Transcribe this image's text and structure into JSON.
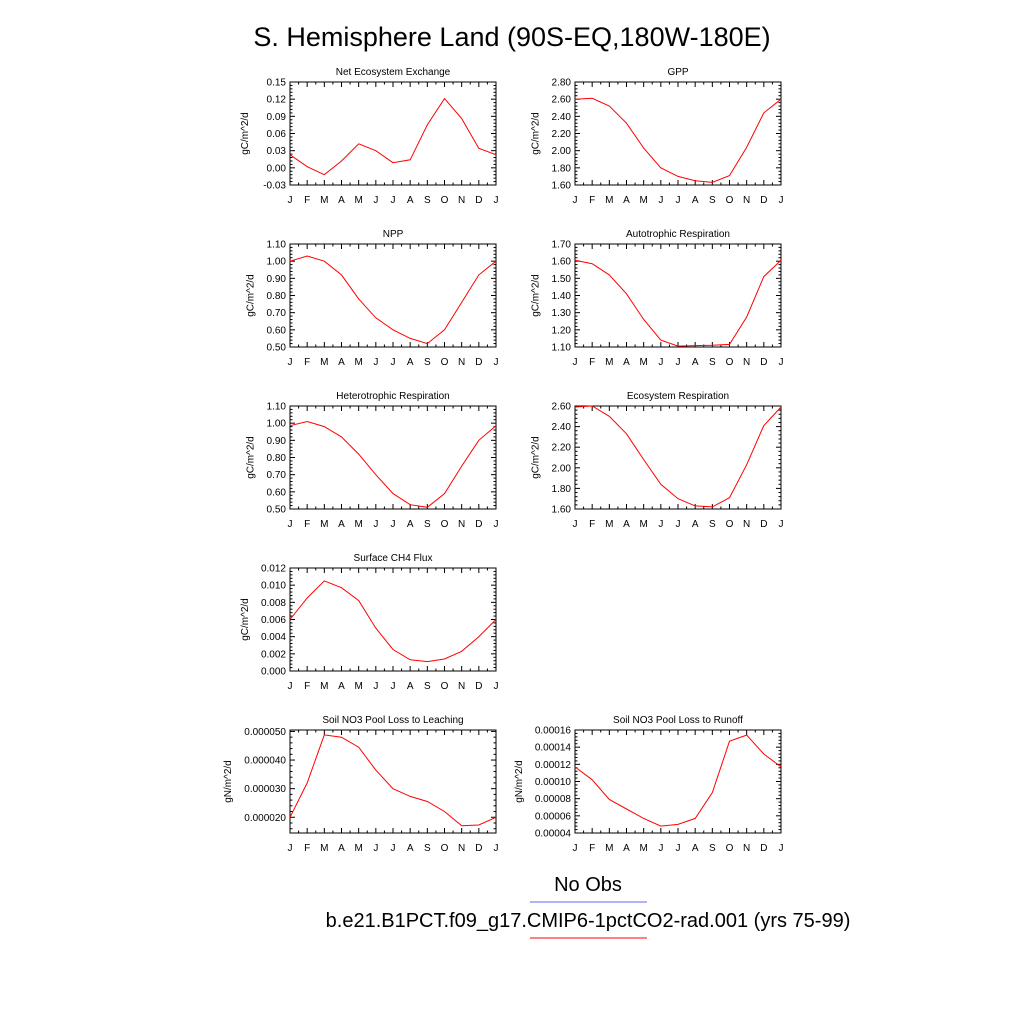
{
  "page": {
    "title": "S. Hemisphere Land (90S-EQ,180W-180E)"
  },
  "colors": {
    "model_line": "#ff0000",
    "obs_line": "#6666ee",
    "axis": "#000000"
  },
  "legend": [
    {
      "label": "No Obs",
      "color": "#6666ee"
    },
    {
      "label": "b.e21.B1PCT.f09_g17.CMIP6-1pctCO2-rad.001 (yrs 75-99)",
      "color": "#ff0000"
    }
  ],
  "chart_data": [
    {
      "type": "line",
      "title": "Net Ecosystem Exchange",
      "ylabel": "gC/m^2/d",
      "categories": [
        "J",
        "F",
        "M",
        "A",
        "M",
        "J",
        "J",
        "A",
        "S",
        "O",
        "N",
        "D",
        "J"
      ],
      "ylim": [
        -0.03,
        0.15
      ],
      "yticks": [
        "-0.03",
        "0.00",
        "0.03",
        "0.06",
        "0.09",
        "0.12",
        "0.15"
      ],
      "series": [
        {
          "values": [
            0.023,
            0.002,
            -0.012,
            0.012,
            0.042,
            0.03,
            0.009,
            0.014,
            0.075,
            0.121,
            0.086,
            0.034,
            0.023
          ]
        }
      ]
    },
    {
      "type": "line",
      "title": "GPP",
      "ylabel": "gC/m^2/d",
      "categories": [
        "J",
        "F",
        "M",
        "A",
        "M",
        "J",
        "J",
        "A",
        "S",
        "O",
        "N",
        "D",
        "J"
      ],
      "ylim": [
        1.6,
        2.8
      ],
      "yticks": [
        "1.60",
        "1.80",
        "2.00",
        "2.20",
        "2.40",
        "2.60",
        "2.80"
      ],
      "series": [
        {
          "values": [
            2.6,
            2.61,
            2.52,
            2.32,
            2.03,
            1.8,
            1.7,
            1.65,
            1.63,
            1.71,
            2.04,
            2.44,
            2.6
          ]
        }
      ]
    },
    {
      "type": "line",
      "title": "NPP",
      "ylabel": "gC/m^2/d",
      "categories": [
        "J",
        "F",
        "M",
        "A",
        "M",
        "J",
        "J",
        "A",
        "S",
        "O",
        "N",
        "D",
        "J"
      ],
      "ylim": [
        0.5,
        1.1
      ],
      "yticks": [
        "0.50",
        "0.60",
        "0.70",
        "0.80",
        "0.90",
        "1.00",
        "1.10"
      ],
      "series": [
        {
          "values": [
            1.0,
            1.03,
            1.0,
            0.92,
            0.78,
            0.67,
            0.6,
            0.55,
            0.52,
            0.6,
            0.76,
            0.92,
            1.0
          ]
        }
      ]
    },
    {
      "type": "line",
      "title": "Autotrophic Respiration",
      "ylabel": "gC/m^2/d",
      "categories": [
        "J",
        "F",
        "M",
        "A",
        "M",
        "J",
        "J",
        "A",
        "S",
        "O",
        "N",
        "D",
        "J"
      ],
      "ylim": [
        1.1,
        1.7
      ],
      "yticks": [
        "1.10",
        "1.20",
        "1.30",
        "1.40",
        "1.50",
        "1.60",
        "1.70"
      ],
      "series": [
        {
          "values": [
            1.605,
            1.585,
            1.52,
            1.41,
            1.26,
            1.14,
            1.105,
            1.108,
            1.11,
            1.115,
            1.275,
            1.51,
            1.605
          ]
        }
      ]
    },
    {
      "type": "line",
      "title": "Heterotrophic Respiration",
      "ylabel": "gC/m^2/d",
      "categories": [
        "J",
        "F",
        "M",
        "A",
        "M",
        "J",
        "J",
        "A",
        "S",
        "O",
        "N",
        "D",
        "J"
      ],
      "ylim": [
        0.5,
        1.1
      ],
      "yticks": [
        "0.50",
        "0.60",
        "0.70",
        "0.80",
        "0.90",
        "1.00",
        "1.10"
      ],
      "series": [
        {
          "values": [
            0.985,
            1.01,
            0.98,
            0.92,
            0.82,
            0.7,
            0.59,
            0.525,
            0.51,
            0.59,
            0.75,
            0.9,
            0.985
          ]
        }
      ]
    },
    {
      "type": "line",
      "title": "Ecosystem Respiration",
      "ylabel": "gC/m^2/d",
      "categories": [
        "J",
        "F",
        "M",
        "A",
        "M",
        "J",
        "J",
        "A",
        "S",
        "O",
        "N",
        "D",
        "J"
      ],
      "ylim": [
        1.6,
        2.6
      ],
      "yticks": [
        "1.60",
        "1.80",
        "2.00",
        "2.20",
        "2.40",
        "2.60"
      ],
      "series": [
        {
          "values": [
            2.59,
            2.6,
            2.5,
            2.33,
            2.08,
            1.84,
            1.7,
            1.63,
            1.62,
            1.71,
            2.03,
            2.41,
            2.59
          ]
        }
      ]
    },
    {
      "type": "line",
      "title": "Surface CH4 Flux",
      "ylabel": "gC/m^2/d",
      "categories": [
        "J",
        "F",
        "M",
        "A",
        "M",
        "J",
        "J",
        "A",
        "S",
        "O",
        "N",
        "D",
        "J"
      ],
      "ylim": [
        0.0,
        0.012
      ],
      "yticks": [
        "0.000",
        "0.002",
        "0.004",
        "0.006",
        "0.008",
        "0.010",
        "0.012"
      ],
      "series": [
        {
          "values": [
            0.006,
            0.0085,
            0.0105,
            0.0097,
            0.0082,
            0.005,
            0.0025,
            0.0013,
            0.0011,
            0.0014,
            0.0023,
            0.004,
            0.006
          ]
        }
      ]
    },
    {
      "type": "line",
      "title": "Soil NO3 Pool Loss to Leaching",
      "ylabel": "gN/m^2/d",
      "categories": [
        "J",
        "F",
        "M",
        "A",
        "M",
        "J",
        "J",
        "A",
        "S",
        "O",
        "N",
        "D",
        "J"
      ],
      "ylim": [
        1.45e-05,
        5.05e-05
      ],
      "yticks": [
        "0.000020",
        "0.000030",
        "0.000040",
        "0.000050"
      ],
      "ytick_values": [
        2e-05,
        3e-05,
        4e-05,
        5e-05
      ],
      "series": [
        {
          "values": [
            2e-05,
            3.2e-05,
            4.88e-05,
            4.8e-05,
            4.45e-05,
            3.65e-05,
            3e-05,
            2.73e-05,
            2.55e-05,
            2.2e-05,
            1.7e-05,
            1.73e-05,
            2e-05
          ]
        }
      ]
    },
    {
      "type": "line",
      "title": "Soil NO3 Pool Loss to Runoff",
      "ylabel": "gN/m^2/d",
      "categories": [
        "J",
        "F",
        "M",
        "A",
        "M",
        "J",
        "J",
        "A",
        "S",
        "O",
        "N",
        "D",
        "J"
      ],
      "ylim": [
        4e-05,
        0.00016
      ],
      "yticks": [
        "0.00004",
        "0.00006",
        "0.00008",
        "0.00010",
        "0.00012",
        "0.00014",
        "0.00016"
      ],
      "series": [
        {
          "values": [
            0.000117,
            0.000102,
            7.9e-05,
            6.8e-05,
            5.7e-05,
            4.8e-05,
            5e-05,
            5.7e-05,
            8.7e-05,
            0.000147,
            0.000154,
            0.000132,
            0.000117
          ]
        }
      ]
    }
  ]
}
